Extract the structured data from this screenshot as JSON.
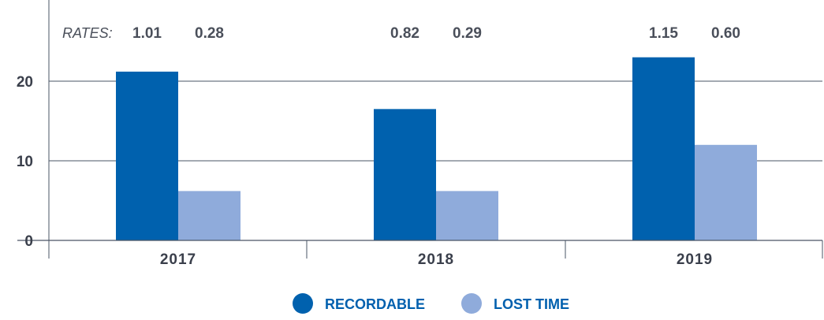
{
  "chart_data": {
    "type": "bar",
    "categories": [
      "2017",
      "2018",
      "2019"
    ],
    "series": [
      {
        "name": "RECORDABLE",
        "values": [
          21.2,
          16.5,
          23.0
        ],
        "color": "#0061ae"
      },
      {
        "name": "LOST TIME",
        "values": [
          6.2,
          6.2,
          12.0
        ],
        "color": "#8fabdb"
      }
    ],
    "yticks": [
      "0",
      "10",
      "20"
    ],
    "ylim": [
      0,
      30
    ],
    "grid": true,
    "legend_position": "bottom-center",
    "rates_label": "RATES:",
    "rates": [
      [
        "1.01",
        "0.28"
      ],
      [
        "0.82",
        "0.29"
      ],
      [
        "1.15",
        "0.60"
      ]
    ]
  }
}
